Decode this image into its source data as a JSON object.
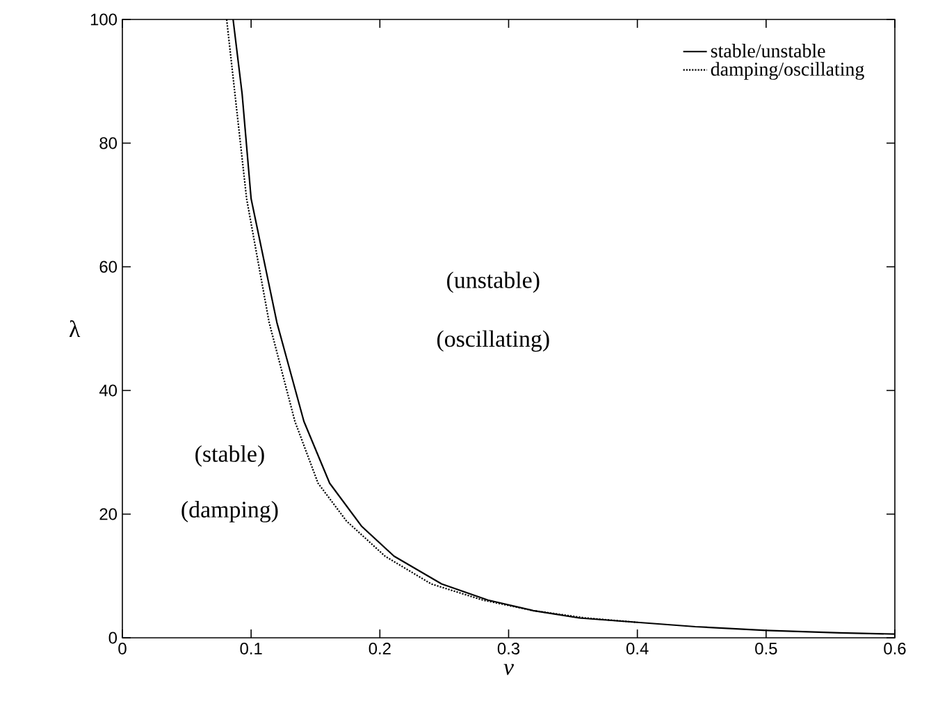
{
  "chart_data": {
    "type": "line",
    "xlabel": "v",
    "ylabel": "λ",
    "xlim": [
      0,
      0.6
    ],
    "ylim": [
      0,
      100
    ],
    "xticks": [
      0,
      0.1,
      0.2,
      0.3,
      0.4,
      0.5,
      0.6
    ],
    "yticks": [
      0,
      20,
      40,
      60,
      80,
      100
    ],
    "legend": "top right",
    "grid": false,
    "annotations": [
      "(unstable)",
      "(oscillating)",
      "(stable)",
      "(damping)"
    ],
    "series": [
      {
        "name": "stable/unstable",
        "color": "#000000",
        "line_style": "solid",
        "x": [
          0.086,
          0.093,
          0.1,
          0.12,
          0.141,
          0.161,
          0.186,
          0.211,
          0.248,
          0.284,
          0.319,
          0.355,
          0.4,
          0.445,
          0.5,
          0.557,
          0.6
        ],
        "values": [
          100,
          88,
          71,
          51,
          35,
          25,
          18,
          13.2,
          8.7,
          6.1,
          4.4,
          3.2,
          2.5,
          1.8,
          1.2,
          0.8,
          0.6
        ]
      },
      {
        "name": "damping/oscillating",
        "color": "#000000",
        "line_style": "dotted",
        "x": [
          0.081,
          0.0965,
          0.114,
          0.134,
          0.152,
          0.174,
          0.204,
          0.24,
          0.28,
          0.319,
          0.36,
          0.4
        ],
        "values": [
          100,
          71,
          51,
          35,
          25,
          18.9,
          13.2,
          8.7,
          6.1,
          4.4,
          3.2,
          2.5
        ]
      }
    ]
  }
}
